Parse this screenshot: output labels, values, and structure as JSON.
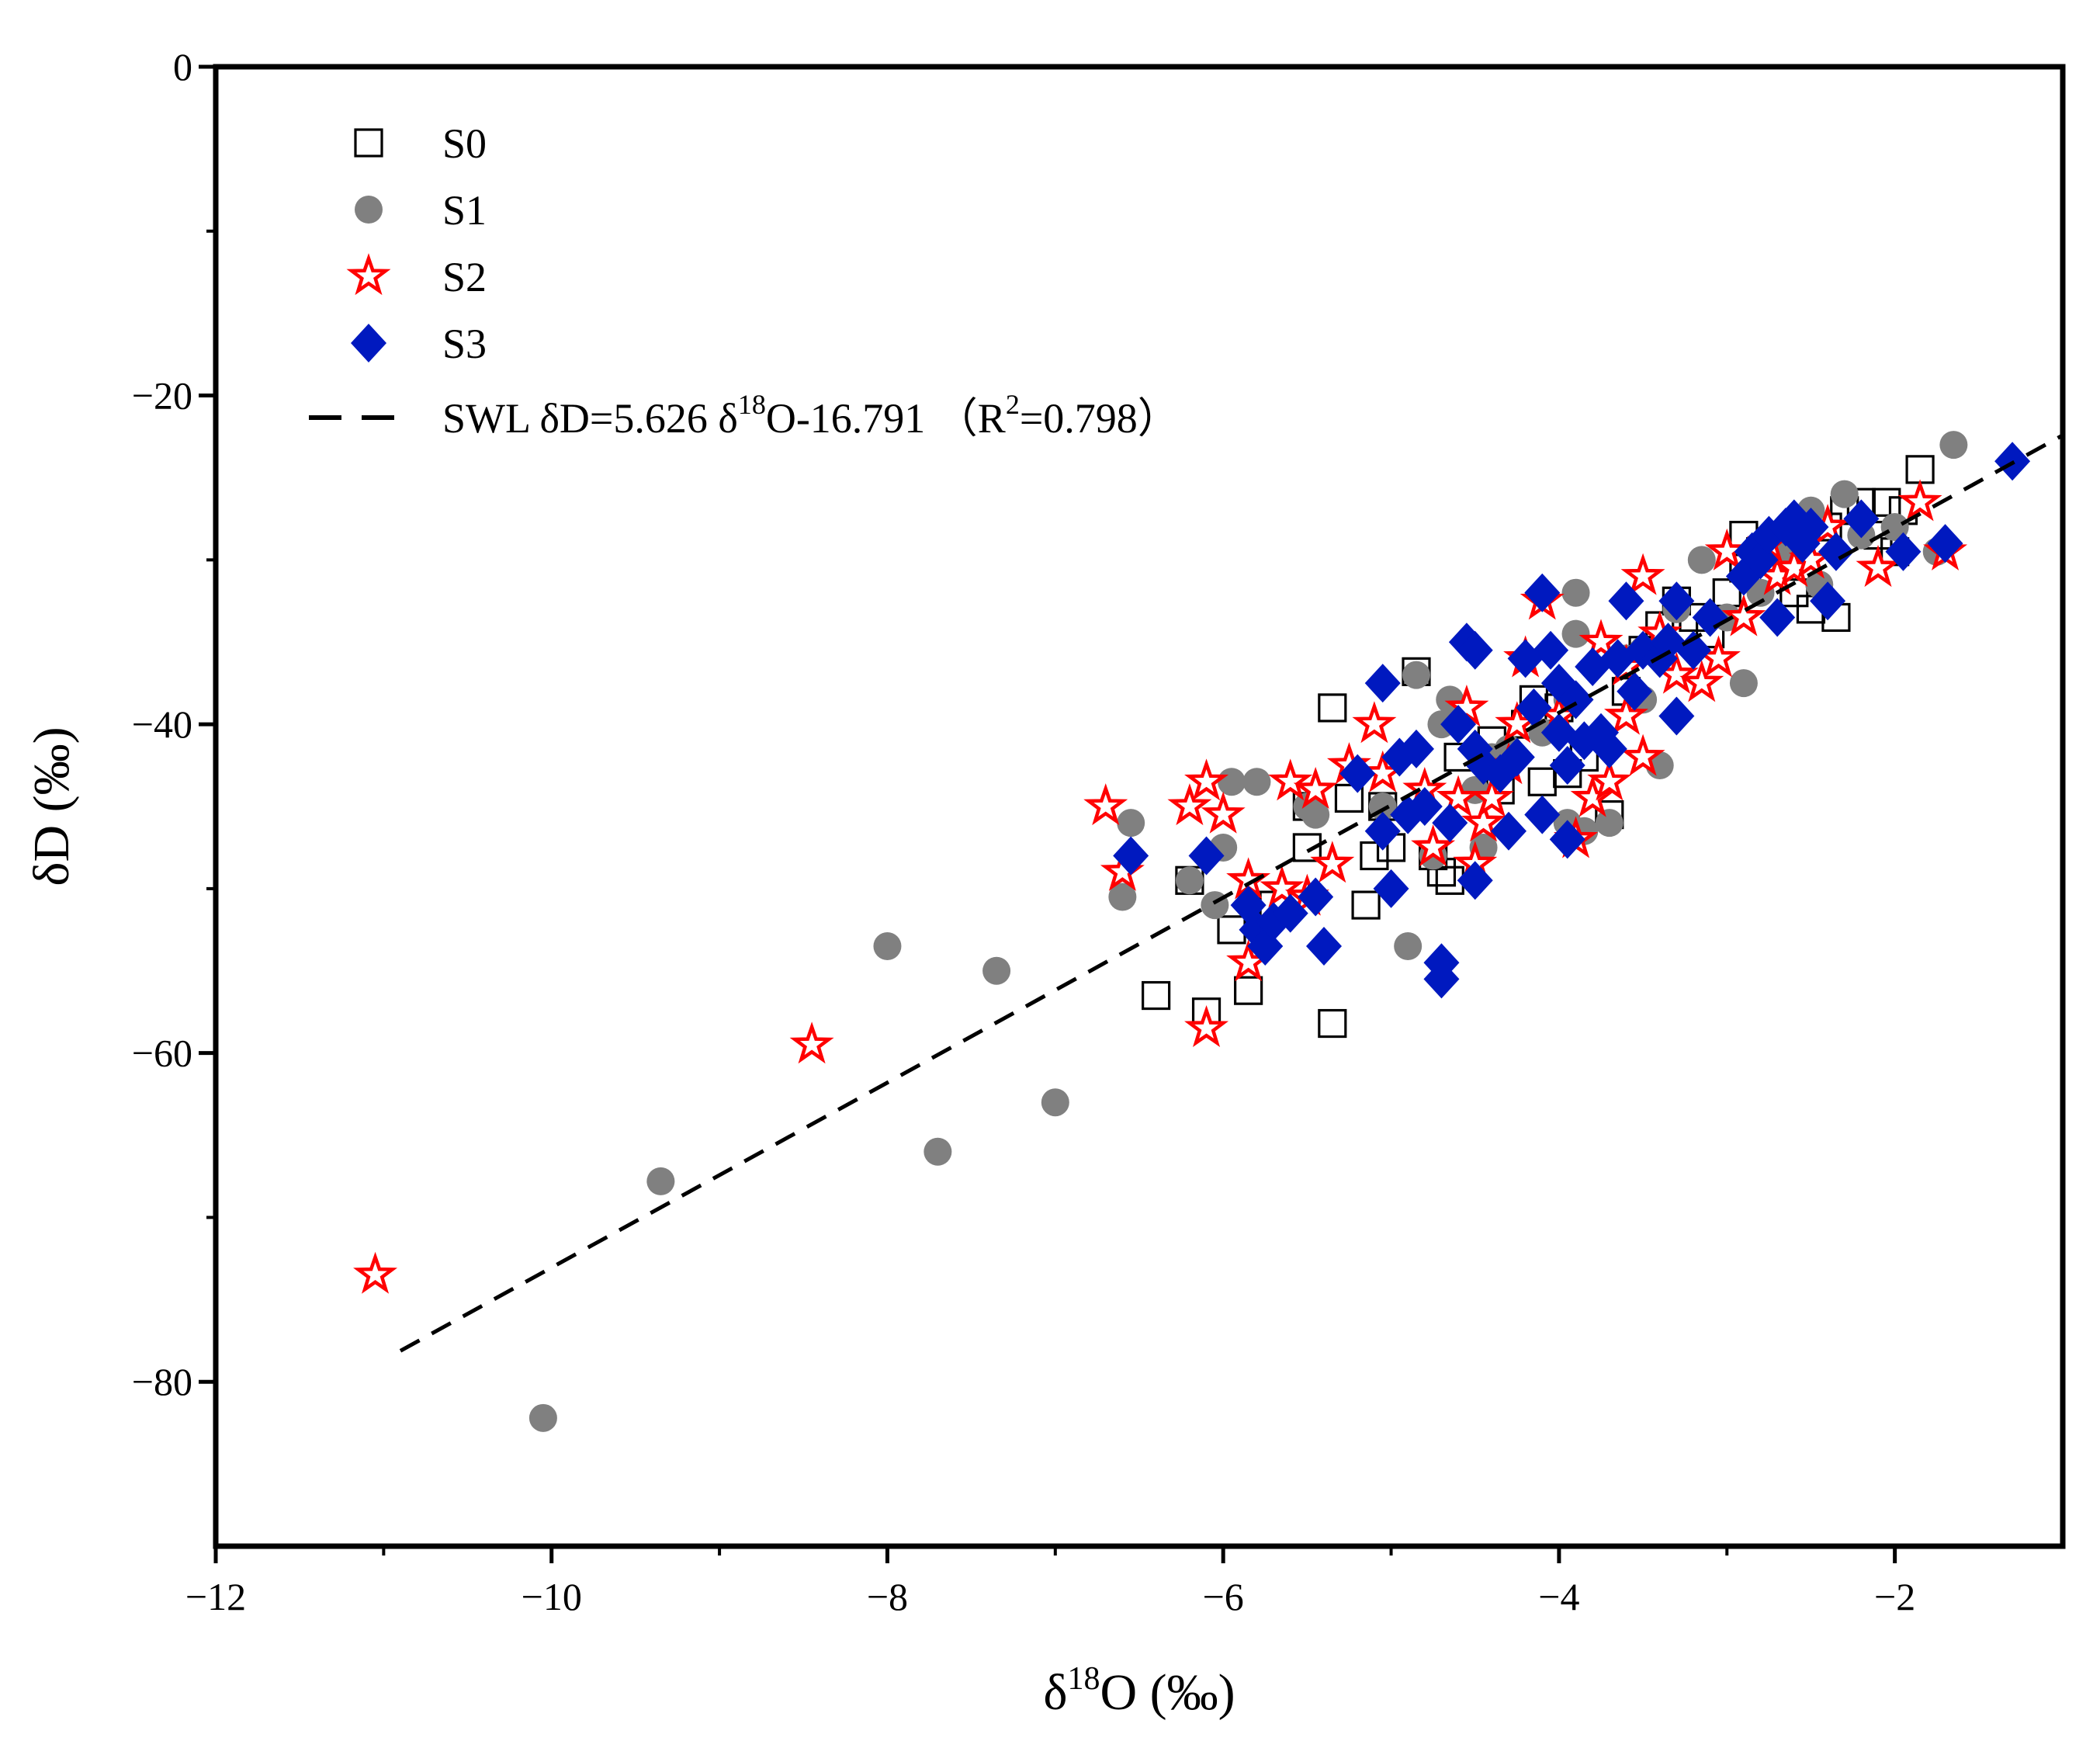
{
  "chart_data": {
    "type": "scatter",
    "title": "",
    "xlabel": {
      "prefix": "δ",
      "sup": "18",
      "rest": "O (‰)"
    },
    "ylabel": "δD (‰)",
    "xlim": [
      -12,
      -1
    ],
    "ylim": [
      -90,
      0
    ],
    "xticks": [
      -12,
      -10,
      -8,
      -6,
      -4,
      -2
    ],
    "yticks": [
      0,
      -20,
      -40,
      -60,
      -80
    ],
    "xtick_labels": [
      "−12",
      "−10",
      "−8",
      "−6",
      "−4",
      "−2"
    ],
    "ytick_labels": [
      "0",
      "−20",
      "−40",
      "−60",
      "−80"
    ],
    "legend_position": "top-left",
    "grid": false,
    "series": [
      {
        "name": "S0",
        "marker": "open-square",
        "color": "#000000",
        "points": [
          [
            -6.4,
            -56.5
          ],
          [
            -6.1,
            -57.5
          ],
          [
            -5.85,
            -56.2
          ],
          [
            -5.35,
            -58.2
          ],
          [
            -5.95,
            -52.5
          ],
          [
            -5.7,
            -51.0
          ],
          [
            -5.15,
            -51.0
          ],
          [
            -5.35,
            -39.0
          ],
          [
            -5.5,
            -47.5
          ],
          [
            -5.1,
            -48.0
          ],
          [
            -5.0,
            -47.5
          ],
          [
            -4.75,
            -48.0
          ],
          [
            -4.7,
            -49.0
          ],
          [
            -4.65,
            -49.5
          ],
          [
            -4.85,
            -36.8
          ],
          [
            -5.25,
            -44.5
          ],
          [
            -6.2,
            -49.5
          ],
          [
            -5.05,
            -45.0
          ],
          [
            -4.6,
            -42.0
          ],
          [
            -4.4,
            -41.0
          ],
          [
            -4.2,
            -40.0
          ],
          [
            -4.15,
            -38.5
          ],
          [
            -4.1,
            -43.5
          ],
          [
            -4.0,
            -39.0
          ],
          [
            -3.85,
            -42.0
          ],
          [
            -3.7,
            -45.5
          ],
          [
            -3.6,
            -38.0
          ],
          [
            -3.5,
            -35.5
          ],
          [
            -3.4,
            -34.0
          ],
          [
            -3.3,
            -32.5
          ],
          [
            -3.2,
            -33.5
          ],
          [
            -3.1,
            -34.5
          ],
          [
            -3.0,
            -32.0
          ],
          [
            -2.9,
            -30.5
          ],
          [
            -2.8,
            -29.5
          ],
          [
            -2.7,
            -30.0
          ],
          [
            -2.6,
            -32.0
          ],
          [
            -2.5,
            -33.0
          ],
          [
            -2.4,
            -28.0
          ],
          [
            -2.3,
            -27.0
          ],
          [
            -2.2,
            -26.5
          ],
          [
            -2.1,
            -28.5
          ],
          [
            -2.0,
            -29.5
          ],
          [
            -2.05,
            -26.5
          ],
          [
            -1.95,
            -27.0
          ],
          [
            -1.85,
            -24.5
          ],
          [
            -2.35,
            -33.5
          ],
          [
            -2.9,
            -28.5
          ],
          [
            -4.35,
            -44.0
          ],
          [
            -3.95,
            -43.0
          ],
          [
            -5.5,
            -45.0
          ]
        ]
      },
      {
        "name": "S1",
        "marker": "filled-circle",
        "color": "#808080",
        "points": [
          [
            -10.05,
            -82.2
          ],
          [
            -9.35,
            -67.8
          ],
          [
            -8.0,
            -53.5
          ],
          [
            -7.35,
            -55.0
          ],
          [
            -7.0,
            -63.0
          ],
          [
            -7.7,
            -66.0
          ],
          [
            -6.6,
            -50.5
          ],
          [
            -6.55,
            -46.0
          ],
          [
            -6.2,
            -49.5
          ],
          [
            -6.05,
            -51.0
          ],
          [
            -6.0,
            -47.5
          ],
          [
            -5.95,
            -43.5
          ],
          [
            -5.8,
            -43.5
          ],
          [
            -5.45,
            -45.5
          ],
          [
            -5.05,
            -45.0
          ],
          [
            -4.9,
            -53.5
          ],
          [
            -4.85,
            -37.0
          ],
          [
            -4.7,
            -40.0
          ],
          [
            -4.65,
            -38.5
          ],
          [
            -4.5,
            -44.0
          ],
          [
            -4.4,
            -42.0
          ],
          [
            -4.3,
            -41.5
          ],
          [
            -4.1,
            -40.5
          ],
          [
            -3.95,
            -38.5
          ],
          [
            -3.9,
            -34.5
          ],
          [
            -3.9,
            -32.0
          ],
          [
            -3.85,
            -46.5
          ],
          [
            -3.7,
            -46.0
          ],
          [
            -3.6,
            -36.0
          ],
          [
            -3.5,
            -35.5
          ],
          [
            -3.4,
            -42.5
          ],
          [
            -3.3,
            -33.0
          ],
          [
            -3.15,
            -30.0
          ],
          [
            -3.0,
            -33.5
          ],
          [
            -2.9,
            -37.5
          ],
          [
            -2.8,
            -32.0
          ],
          [
            -2.7,
            -29.0
          ],
          [
            -2.6,
            -30.0
          ],
          [
            -2.5,
            -27.0
          ],
          [
            -2.45,
            -31.5
          ],
          [
            -2.3,
            -26.0
          ],
          [
            -2.2,
            -28.5
          ],
          [
            -2.0,
            -28.0
          ],
          [
            -1.65,
            -23.0
          ],
          [
            -1.75,
            -29.5
          ],
          [
            -4.75,
            -48.0
          ],
          [
            -4.45,
            -47.5
          ],
          [
            -3.95,
            -46.0
          ],
          [
            -5.5,
            -45.0
          ],
          [
            -3.5,
            -38.5
          ]
        ]
      },
      {
        "name": "S2",
        "marker": "open-star",
        "color": "#ff0000",
        "points": [
          [
            -11.05,
            -73.5
          ],
          [
            -8.45,
            -59.5
          ],
          [
            -6.7,
            -45.0
          ],
          [
            -6.6,
            -49.0
          ],
          [
            -6.2,
            -45.0
          ],
          [
            -6.1,
            -58.5
          ],
          [
            -6.1,
            -43.5
          ],
          [
            -6.0,
            -45.5
          ],
          [
            -5.85,
            -54.5
          ],
          [
            -5.85,
            -49.5
          ],
          [
            -5.65,
            -50.0
          ],
          [
            -5.6,
            -43.5
          ],
          [
            -5.5,
            -50.5
          ],
          [
            -5.45,
            -44.0
          ],
          [
            -5.35,
            -48.5
          ],
          [
            -5.1,
            -40.0
          ],
          [
            -5.05,
            -43.0
          ],
          [
            -4.75,
            -47.5
          ],
          [
            -4.6,
            -44.5
          ],
          [
            -4.55,
            -39.0
          ],
          [
            -4.5,
            -48.5
          ],
          [
            -4.45,
            -46.0
          ],
          [
            -4.4,
            -44.5
          ],
          [
            -4.3,
            -42.5
          ],
          [
            -4.2,
            -36.0
          ],
          [
            -4.1,
            -32.5
          ],
          [
            -4.0,
            -39.5
          ],
          [
            -3.9,
            -47.0
          ],
          [
            -3.8,
            -44.5
          ],
          [
            -3.75,
            -35.0
          ],
          [
            -3.7,
            -43.5
          ],
          [
            -3.6,
            -36.5
          ],
          [
            -3.5,
            -42.0
          ],
          [
            -3.5,
            -31.0
          ],
          [
            -3.4,
            -34.5
          ],
          [
            -3.3,
            -37.0
          ],
          [
            -3.15,
            -37.5
          ],
          [
            -3.05,
            -36.0
          ],
          [
            -3.0,
            -29.5
          ],
          [
            -2.9,
            -33.5
          ],
          [
            -2.75,
            -29.0
          ],
          [
            -2.7,
            -31.0
          ],
          [
            -2.6,
            -30.5
          ],
          [
            -2.5,
            -30.0
          ],
          [
            -2.4,
            -28.0
          ],
          [
            -2.1,
            -30.5
          ],
          [
            -1.85,
            -26.5
          ],
          [
            -1.7,
            -29.5
          ],
          [
            -4.8,
            -44.0
          ],
          [
            -4.25,
            -40.0
          ],
          [
            -3.6,
            -39.5
          ],
          [
            -5.25,
            -42.5
          ]
        ]
      },
      {
        "name": "S3",
        "marker": "filled-diamond",
        "color": "#0019bf",
        "points": [
          [
            -6.55,
            -48.0
          ],
          [
            -6.1,
            -48.0
          ],
          [
            -5.85,
            -51.0
          ],
          [
            -5.8,
            -52.5
          ],
          [
            -5.75,
            -53.5
          ],
          [
            -5.7,
            -52.0
          ],
          [
            -5.6,
            -51.5
          ],
          [
            -5.45,
            -50.5
          ],
          [
            -5.4,
            -53.5
          ],
          [
            -5.2,
            -43.0
          ],
          [
            -5.05,
            -37.5
          ],
          [
            -5.05,
            -46.5
          ],
          [
            -5.0,
            -50.0
          ],
          [
            -4.95,
            -42.0
          ],
          [
            -4.9,
            -45.5
          ],
          [
            -4.85,
            -41.5
          ],
          [
            -4.8,
            -45.0
          ],
          [
            -4.7,
            -54.5
          ],
          [
            -4.7,
            -55.5
          ],
          [
            -4.65,
            -46.0
          ],
          [
            -4.6,
            -40.0
          ],
          [
            -4.55,
            -35.0
          ],
          [
            -4.5,
            -35.5
          ],
          [
            -4.5,
            -41.5
          ],
          [
            -4.5,
            -49.5
          ],
          [
            -4.45,
            -42.5
          ],
          [
            -4.35,
            -43.0
          ],
          [
            -4.3,
            -46.5
          ],
          [
            -4.25,
            -42.0
          ],
          [
            -4.2,
            -36.0
          ],
          [
            -4.15,
            -39.0
          ],
          [
            -4.1,
            -32.0
          ],
          [
            -4.1,
            -45.5
          ],
          [
            -4.05,
            -35.5
          ],
          [
            -4.0,
            -37.5
          ],
          [
            -4.0,
            -40.5
          ],
          [
            -3.95,
            -42.5
          ],
          [
            -3.95,
            -47.0
          ],
          [
            -3.9,
            -38.5
          ],
          [
            -3.85,
            -41.0
          ],
          [
            -3.8,
            -36.5
          ],
          [
            -3.75,
            -40.5
          ],
          [
            -3.7,
            -41.5
          ],
          [
            -3.65,
            -36.0
          ],
          [
            -3.6,
            -32.5
          ],
          [
            -3.55,
            -38.0
          ],
          [
            -3.5,
            -35.5
          ],
          [
            -3.4,
            -36.0
          ],
          [
            -3.35,
            -35.0
          ],
          [
            -3.3,
            -32.5
          ],
          [
            -3.3,
            -39.5
          ],
          [
            -3.2,
            -35.5
          ],
          [
            -3.1,
            -33.5
          ],
          [
            -2.9,
            -31.0
          ],
          [
            -2.85,
            -29.5
          ],
          [
            -2.8,
            -30.0
          ],
          [
            -2.75,
            -28.5
          ],
          [
            -2.7,
            -33.5
          ],
          [
            -2.65,
            -28.0
          ],
          [
            -2.6,
            -27.5
          ],
          [
            -2.55,
            -29.0
          ],
          [
            -2.5,
            -28.0
          ],
          [
            -2.4,
            -32.5
          ],
          [
            -2.35,
            -29.5
          ],
          [
            -2.2,
            -27.5
          ],
          [
            -1.95,
            -29.5
          ],
          [
            -1.7,
            -29.0
          ],
          [
            -1.3,
            -24.0
          ]
        ]
      }
    ],
    "fit_line": {
      "label": {
        "main": "SWL δD=5.626 δ",
        "sup1": "18",
        "mid": "O-16.791 （R",
        "sup2": "2",
        "end": "=0.798）"
      },
      "style": "dashed",
      "color": "#000000",
      "slope": 5.626,
      "intercept": -16.791,
      "x_range": [
        -10.9,
        -1.0
      ]
    }
  }
}
